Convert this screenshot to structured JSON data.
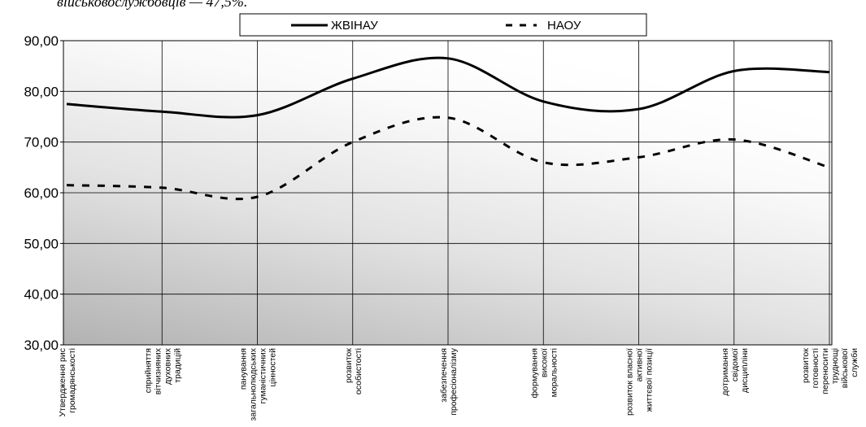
{
  "header_fragment": "військовослужбовців — 47,5%.",
  "chart_data": {
    "type": "line",
    "categories": [
      "Утвердження рис громадянськості",
      "сприйняття вітчизняних духовних традицій",
      "панування загальнолюдських гуманістичних цінностей",
      "розвиток особистості",
      "забезпечення професіоналізму",
      "формування високої моральності",
      "розвиток власної активної життєвої позиції",
      "дотримання свідомої дисципліни",
      "розвиток готовності переносити труднощі військової служби"
    ],
    "series": [
      {
        "name": "ЖВІНАУ",
        "style": "solid",
        "color": "#000000",
        "values": [
          77.5,
          76.0,
          75.3,
          82.5,
          86.5,
          78.0,
          76.5,
          84.0,
          83.8
        ]
      },
      {
        "name": "НАОУ",
        "style": "dashed",
        "color": "#000000",
        "values": [
          61.5,
          61.0,
          59.2,
          70.0,
          74.8,
          66.0,
          67.0,
          70.5,
          65.0
        ]
      }
    ],
    "ylim": [
      30,
      90
    ],
    "yticks": [
      "30,00",
      "40,00",
      "50,00",
      "60,00",
      "70,00",
      "80,00",
      "90,00"
    ],
    "grid": true,
    "legend_position": "top",
    "xlabel": "",
    "ylabel": "",
    "title": ""
  }
}
